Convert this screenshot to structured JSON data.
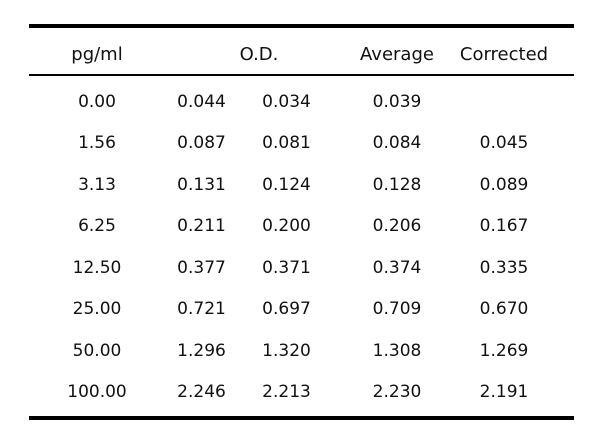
{
  "table": {
    "headers": {
      "conc": "pg/ml",
      "od": "O.D.",
      "avg": "Average",
      "corrected": "Corrected"
    },
    "rows": [
      {
        "conc": "0.00",
        "od1": "0.044",
        "od2": "0.034",
        "avg": "0.039",
        "corrected": ""
      },
      {
        "conc": "1.56",
        "od1": "0.087",
        "od2": "0.081",
        "avg": "0.084",
        "corrected": "0.045"
      },
      {
        "conc": "3.13",
        "od1": "0.131",
        "od2": "0.124",
        "avg": "0.128",
        "corrected": "0.089"
      },
      {
        "conc": "6.25",
        "od1": "0.211",
        "od2": "0.200",
        "avg": "0.206",
        "corrected": "0.167"
      },
      {
        "conc": "12.50",
        "od1": "0.377",
        "od2": "0.371",
        "avg": "0.374",
        "corrected": "0.335"
      },
      {
        "conc": "25.00",
        "od1": "0.721",
        "od2": "0.697",
        "avg": "0.709",
        "corrected": "0.670"
      },
      {
        "conc": "50.00",
        "od1": "1.296",
        "od2": "1.320",
        "avg": "1.308",
        "corrected": "1.269"
      },
      {
        "conc": "100.00",
        "od1": "2.246",
        "od2": "2.213",
        "avg": "2.230",
        "corrected": "2.191"
      }
    ]
  }
}
